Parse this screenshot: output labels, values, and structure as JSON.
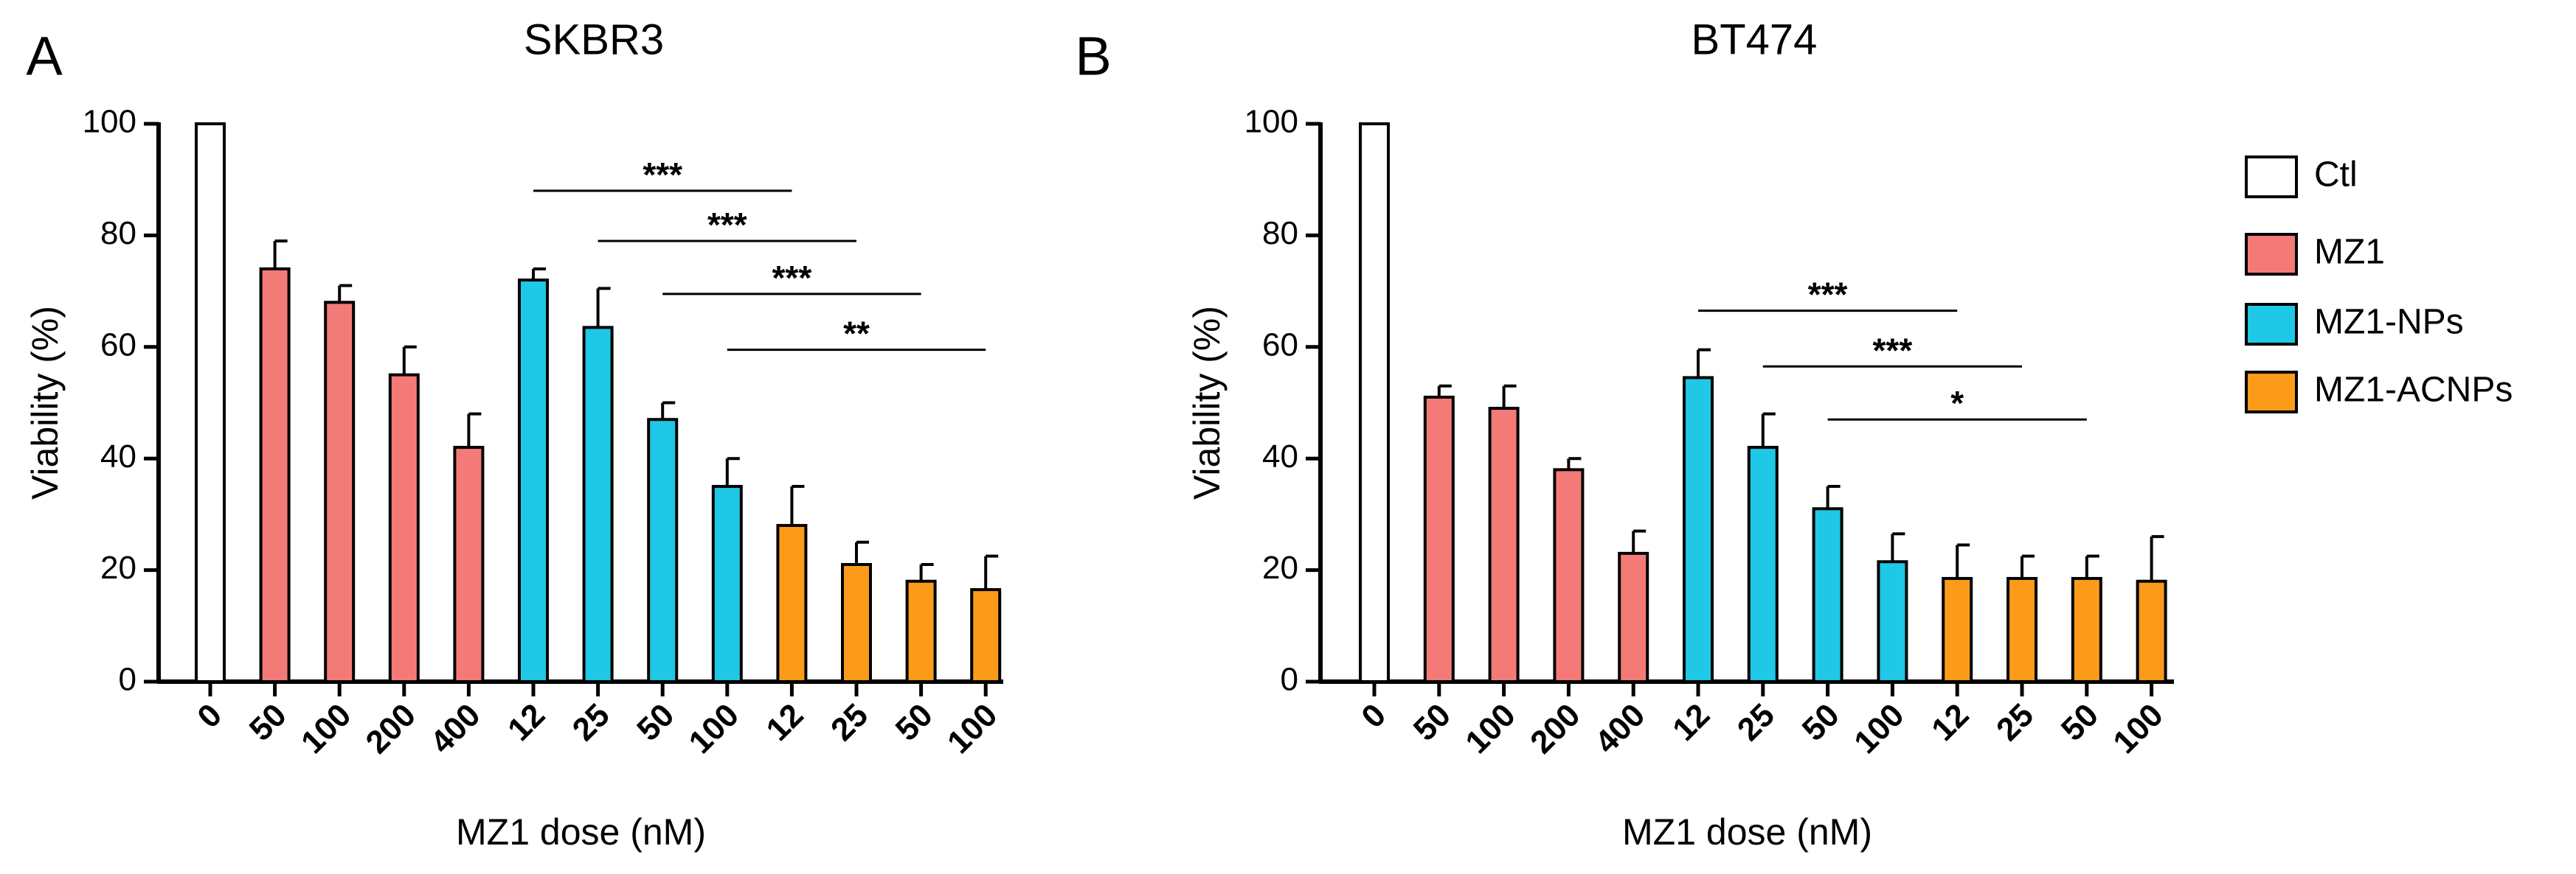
{
  "figure": {
    "legend": [
      {
        "key": "ctl",
        "label": "Ctl"
      },
      {
        "key": "mz1",
        "label": "MZ1"
      },
      {
        "key": "nps",
        "label": "MZ1-NPs"
      },
      {
        "key": "acnps",
        "label": "MZ1-ACNPs"
      }
    ]
  },
  "colors": {
    "ctl": "#ffffff",
    "mz1": "#f47a78",
    "nps": "#1ec8e6",
    "acnps": "#fb9b19",
    "axis": "#000000"
  },
  "chart_data": [
    {
      "type": "bar",
      "panel_label": "A",
      "title": "SKBR3",
      "xlabel": "MZ1 dose (nM)",
      "ylabel": "Viability (%)",
      "ylim": [
        0,
        100
      ],
      "yticks": [
        0,
        20,
        40,
        60,
        80,
        100
      ],
      "categories": [
        "0",
        "50",
        "100",
        "200",
        "400",
        "12",
        "25",
        "50",
        "100",
        "12",
        "25",
        "50",
        "100"
      ],
      "groups": [
        "ctl",
        "mz1",
        "mz1",
        "mz1",
        "mz1",
        "nps",
        "nps",
        "nps",
        "nps",
        "acnps",
        "acnps",
        "acnps",
        "acnps"
      ],
      "values": [
        100,
        74,
        68,
        55,
        42,
        72,
        63.5,
        47,
        35,
        28,
        21,
        18,
        16.5
      ],
      "errors": [
        0,
        5,
        3,
        5,
        6,
        2,
        7,
        3,
        5,
        7,
        4,
        3,
        6
      ],
      "significance": [
        {
          "from": 5,
          "to": 9,
          "label": "***",
          "y": 88
        },
        {
          "from": 6,
          "to": 10,
          "label": "***",
          "y": 79
        },
        {
          "from": 7,
          "to": 11,
          "label": "***",
          "y": 69.5
        },
        {
          "from": 8,
          "to": 12,
          "label": "**",
          "y": 59.5
        }
      ]
    },
    {
      "type": "bar",
      "panel_label": "B",
      "title": "BT474",
      "xlabel": "MZ1 dose (nM)",
      "ylabel": "Viability (%)",
      "ylim": [
        0,
        100
      ],
      "yticks": [
        0,
        20,
        40,
        60,
        80,
        100
      ],
      "categories": [
        "0",
        "50",
        "100",
        "200",
        "400",
        "12",
        "25",
        "50",
        "100",
        "12",
        "25",
        "50",
        "100"
      ],
      "groups": [
        "ctl",
        "mz1",
        "mz1",
        "mz1",
        "mz1",
        "nps",
        "nps",
        "nps",
        "nps",
        "acnps",
        "acnps",
        "acnps",
        "acnps"
      ],
      "values": [
        100,
        51,
        49,
        38,
        23,
        54.5,
        42,
        31,
        21.5,
        18.5,
        18.5,
        18.5,
        18
      ],
      "errors": [
        0,
        2,
        4,
        2,
        4,
        5,
        6,
        4,
        5,
        6,
        4,
        4,
        8
      ],
      "significance": [
        {
          "from": 5,
          "to": 9,
          "label": "***",
          "y": 66.5
        },
        {
          "from": 6,
          "to": 10,
          "label": "***",
          "y": 56.5
        },
        {
          "from": 7,
          "to": 11,
          "label": "*",
          "y": 47
        }
      ]
    }
  ]
}
